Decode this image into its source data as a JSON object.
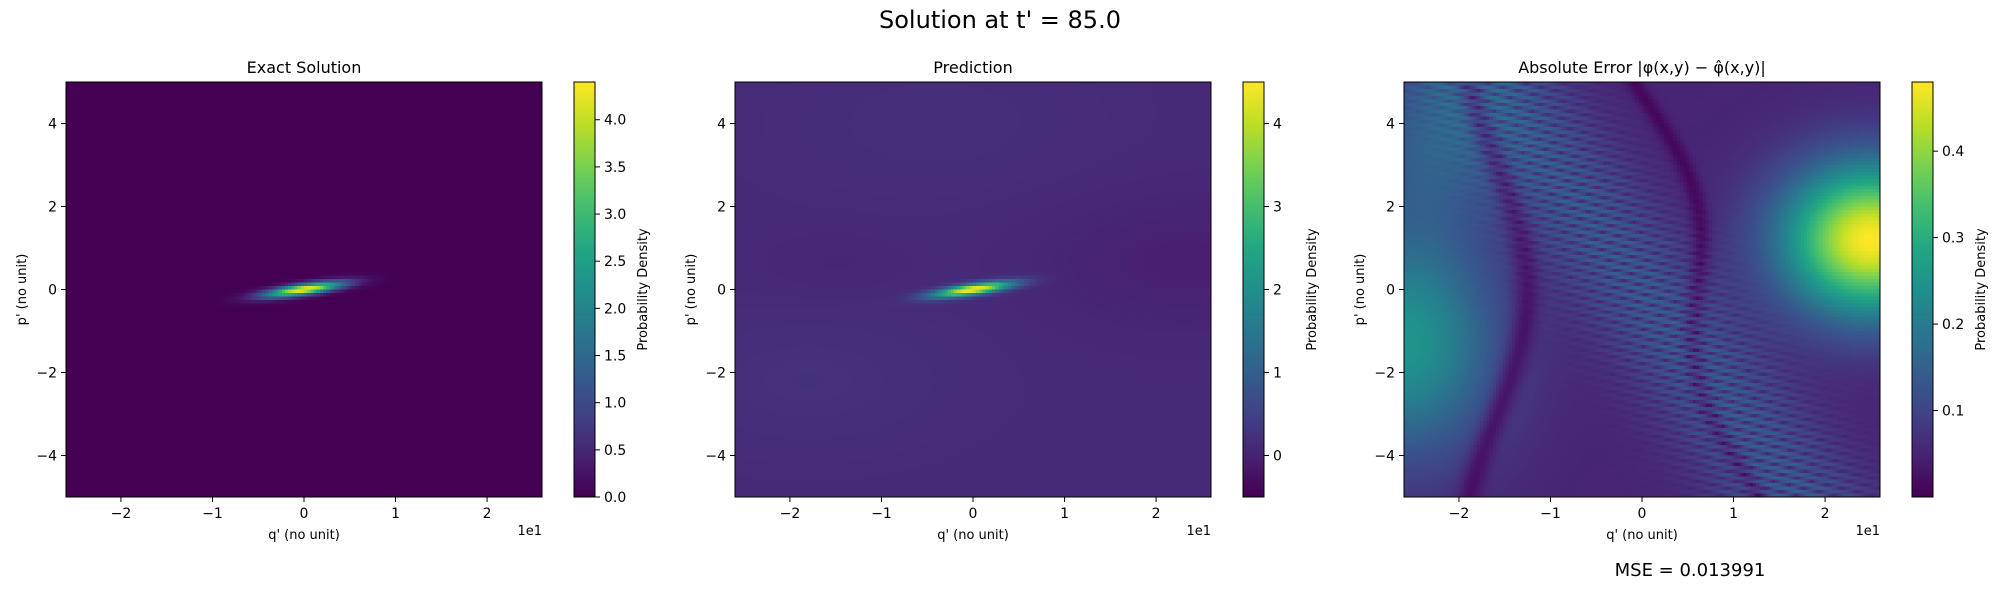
{
  "figure": {
    "suptitle": "Solution at t' = 85.0",
    "mse_text": "MSE = 0.013991"
  },
  "colormap": "viridis",
  "chart_data": [
    {
      "type": "heatmap",
      "title": "Exact Solution",
      "xlabel": "q' (no unit)",
      "ylabel": "p' (no unit)",
      "x_offset_text": "1e1",
      "xlim": [
        -2.6,
        2.6
      ],
      "ylim": [
        -5,
        5
      ],
      "xticks": [
        -2,
        -1,
        0,
        1,
        2
      ],
      "yticks": [
        -4,
        -2,
        0,
        2,
        4
      ],
      "colorbar": {
        "label": "Probability Density",
        "range": [
          0,
          4.4
        ],
        "ticks": [
          0.0,
          0.5,
          1.0,
          1.5,
          2.0,
          2.5,
          3.0,
          3.5,
          4.0
        ],
        "tick_labels": [
          "0.0",
          "0.5",
          "1.0",
          "1.5",
          "2.0",
          "2.5",
          "3.0",
          "3.5",
          "4.0"
        ]
      },
      "field": {
        "peak": 4.4,
        "center": [
          0,
          0
        ],
        "orientation": "ridge along p' ≈ 0.33·q'"
      }
    },
    {
      "type": "heatmap",
      "title": "Prediction",
      "xlabel": "q' (no unit)",
      "ylabel": "p' (no unit)",
      "x_offset_text": "1e1",
      "xlim": [
        -2.6,
        2.6
      ],
      "ylim": [
        -5,
        5
      ],
      "xticks": [
        -2,
        -1,
        0,
        1,
        2
      ],
      "yticks": [
        -4,
        -2,
        0,
        2,
        4
      ],
      "colorbar": {
        "label": "Probability Density",
        "range": [
          -0.5,
          4.5
        ],
        "ticks": [
          0,
          1,
          2,
          3,
          4
        ],
        "tick_labels": [
          "0",
          "1",
          "2",
          "3",
          "4"
        ]
      },
      "field": {
        "peak": 4.5,
        "background": 0.1,
        "center": [
          0,
          0
        ],
        "orientation": "ridge along p' ≈ 0.33·q'"
      }
    },
    {
      "type": "heatmap",
      "title": "Absolute Error |φ(x,y) − φ̂(x,y)|",
      "xlabel": "q' (no unit)",
      "ylabel": "p' (no unit)",
      "x_offset_text": "1e1",
      "xlim": [
        -2.6,
        2.6
      ],
      "ylim": [
        -5,
        5
      ],
      "xticks": [
        -2,
        -1,
        0,
        1,
        2
      ],
      "yticks": [
        -4,
        -2,
        0,
        2,
        4
      ],
      "colorbar": {
        "label": "Probability Density",
        "range": [
          0.0,
          0.48
        ],
        "ticks": [
          0.1,
          0.2,
          0.3,
          0.4
        ],
        "tick_labels": [
          "0.1",
          "0.2",
          "0.3",
          "0.4"
        ]
      },
      "field": {
        "max": 0.48,
        "hotspot": [
          2.3,
          1.3
        ],
        "secondary": [
          -2.6,
          -2.0
        ]
      }
    }
  ]
}
